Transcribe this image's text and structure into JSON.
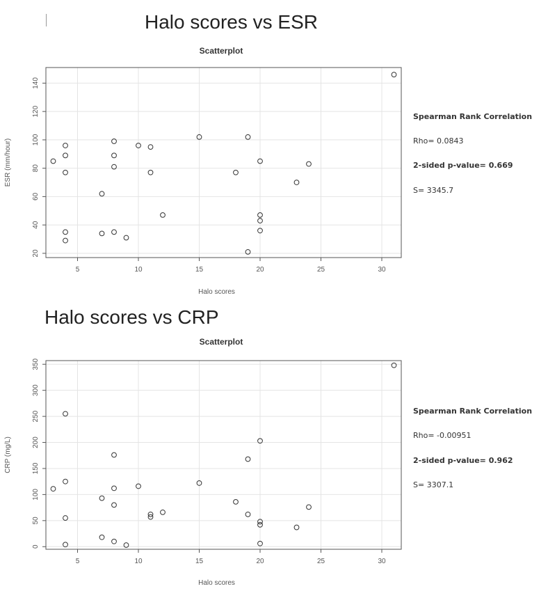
{
  "heading1": "Halo scores vs ESR",
  "heading2": "Halo scores vs CRP",
  "chart_data": [
    {
      "type": "scatter",
      "title": "Scatterplot",
      "xlabel": "Halo scores",
      "ylabel": "ESR (mm/hour)",
      "xlim": [
        2.4,
        31.6
      ],
      "ylim": [
        17,
        151
      ],
      "xticks": [
        5,
        10,
        15,
        20,
        25,
        30
      ],
      "yticks": [
        20,
        40,
        60,
        80,
        100,
        120,
        140
      ],
      "points": [
        [
          3,
          85
        ],
        [
          4,
          96
        ],
        [
          4,
          89
        ],
        [
          4,
          77
        ],
        [
          4,
          35
        ],
        [
          4,
          29
        ],
        [
          7,
          62
        ],
        [
          7,
          34
        ],
        [
          8,
          99
        ],
        [
          8,
          89
        ],
        [
          8,
          81
        ],
        [
          8,
          35
        ],
        [
          9,
          31
        ],
        [
          10,
          96
        ],
        [
          11,
          95
        ],
        [
          11,
          77
        ],
        [
          12,
          47
        ],
        [
          15,
          102
        ],
        [
          18,
          77
        ],
        [
          19,
          102
        ],
        [
          19,
          21
        ],
        [
          20,
          85
        ],
        [
          20,
          47
        ],
        [
          20,
          43
        ],
        [
          20,
          36
        ],
        [
          23,
          70
        ],
        [
          24,
          83
        ],
        [
          31,
          146
        ]
      ],
      "stats": {
        "heading": "Spearman Rank Correlation",
        "rho": "Rho= 0.0843",
        "pvalue": "2-sided p-value= 0.669",
        "s": "S= 3345.7"
      }
    },
    {
      "type": "scatter",
      "title": "Scatterplot",
      "xlabel": "Halo scores",
      "ylabel": "CRP (mg/L)",
      "xlim": [
        2.4,
        31.6
      ],
      "ylim": [
        -5,
        357
      ],
      "xticks": [
        5,
        10,
        15,
        20,
        25,
        30
      ],
      "yticks": [
        0,
        50,
        100,
        150,
        200,
        250,
        300,
        350
      ],
      "points": [
        [
          3,
          111
        ],
        [
          4,
          255
        ],
        [
          4,
          125
        ],
        [
          4,
          55
        ],
        [
          4,
          4
        ],
        [
          7,
          93
        ],
        [
          7,
          18
        ],
        [
          8,
          176
        ],
        [
          8,
          112
        ],
        [
          8,
          80
        ],
        [
          8,
          10
        ],
        [
          9,
          3
        ],
        [
          10,
          116
        ],
        [
          11,
          62
        ],
        [
          11,
          57
        ],
        [
          12,
          66
        ],
        [
          15,
          122
        ],
        [
          18,
          86
        ],
        [
          19,
          168
        ],
        [
          19,
          62
        ],
        [
          20,
          203
        ],
        [
          20,
          48
        ],
        [
          20,
          42
        ],
        [
          20,
          6
        ],
        [
          23,
          37
        ],
        [
          24,
          76
        ],
        [
          31,
          348
        ]
      ],
      "stats": {
        "heading": "Spearman Rank Correlation",
        "rho": "Rho= -0.00951",
        "pvalue": "2-sided p-value= 0.962",
        "s": "S= 3307.1"
      }
    }
  ]
}
